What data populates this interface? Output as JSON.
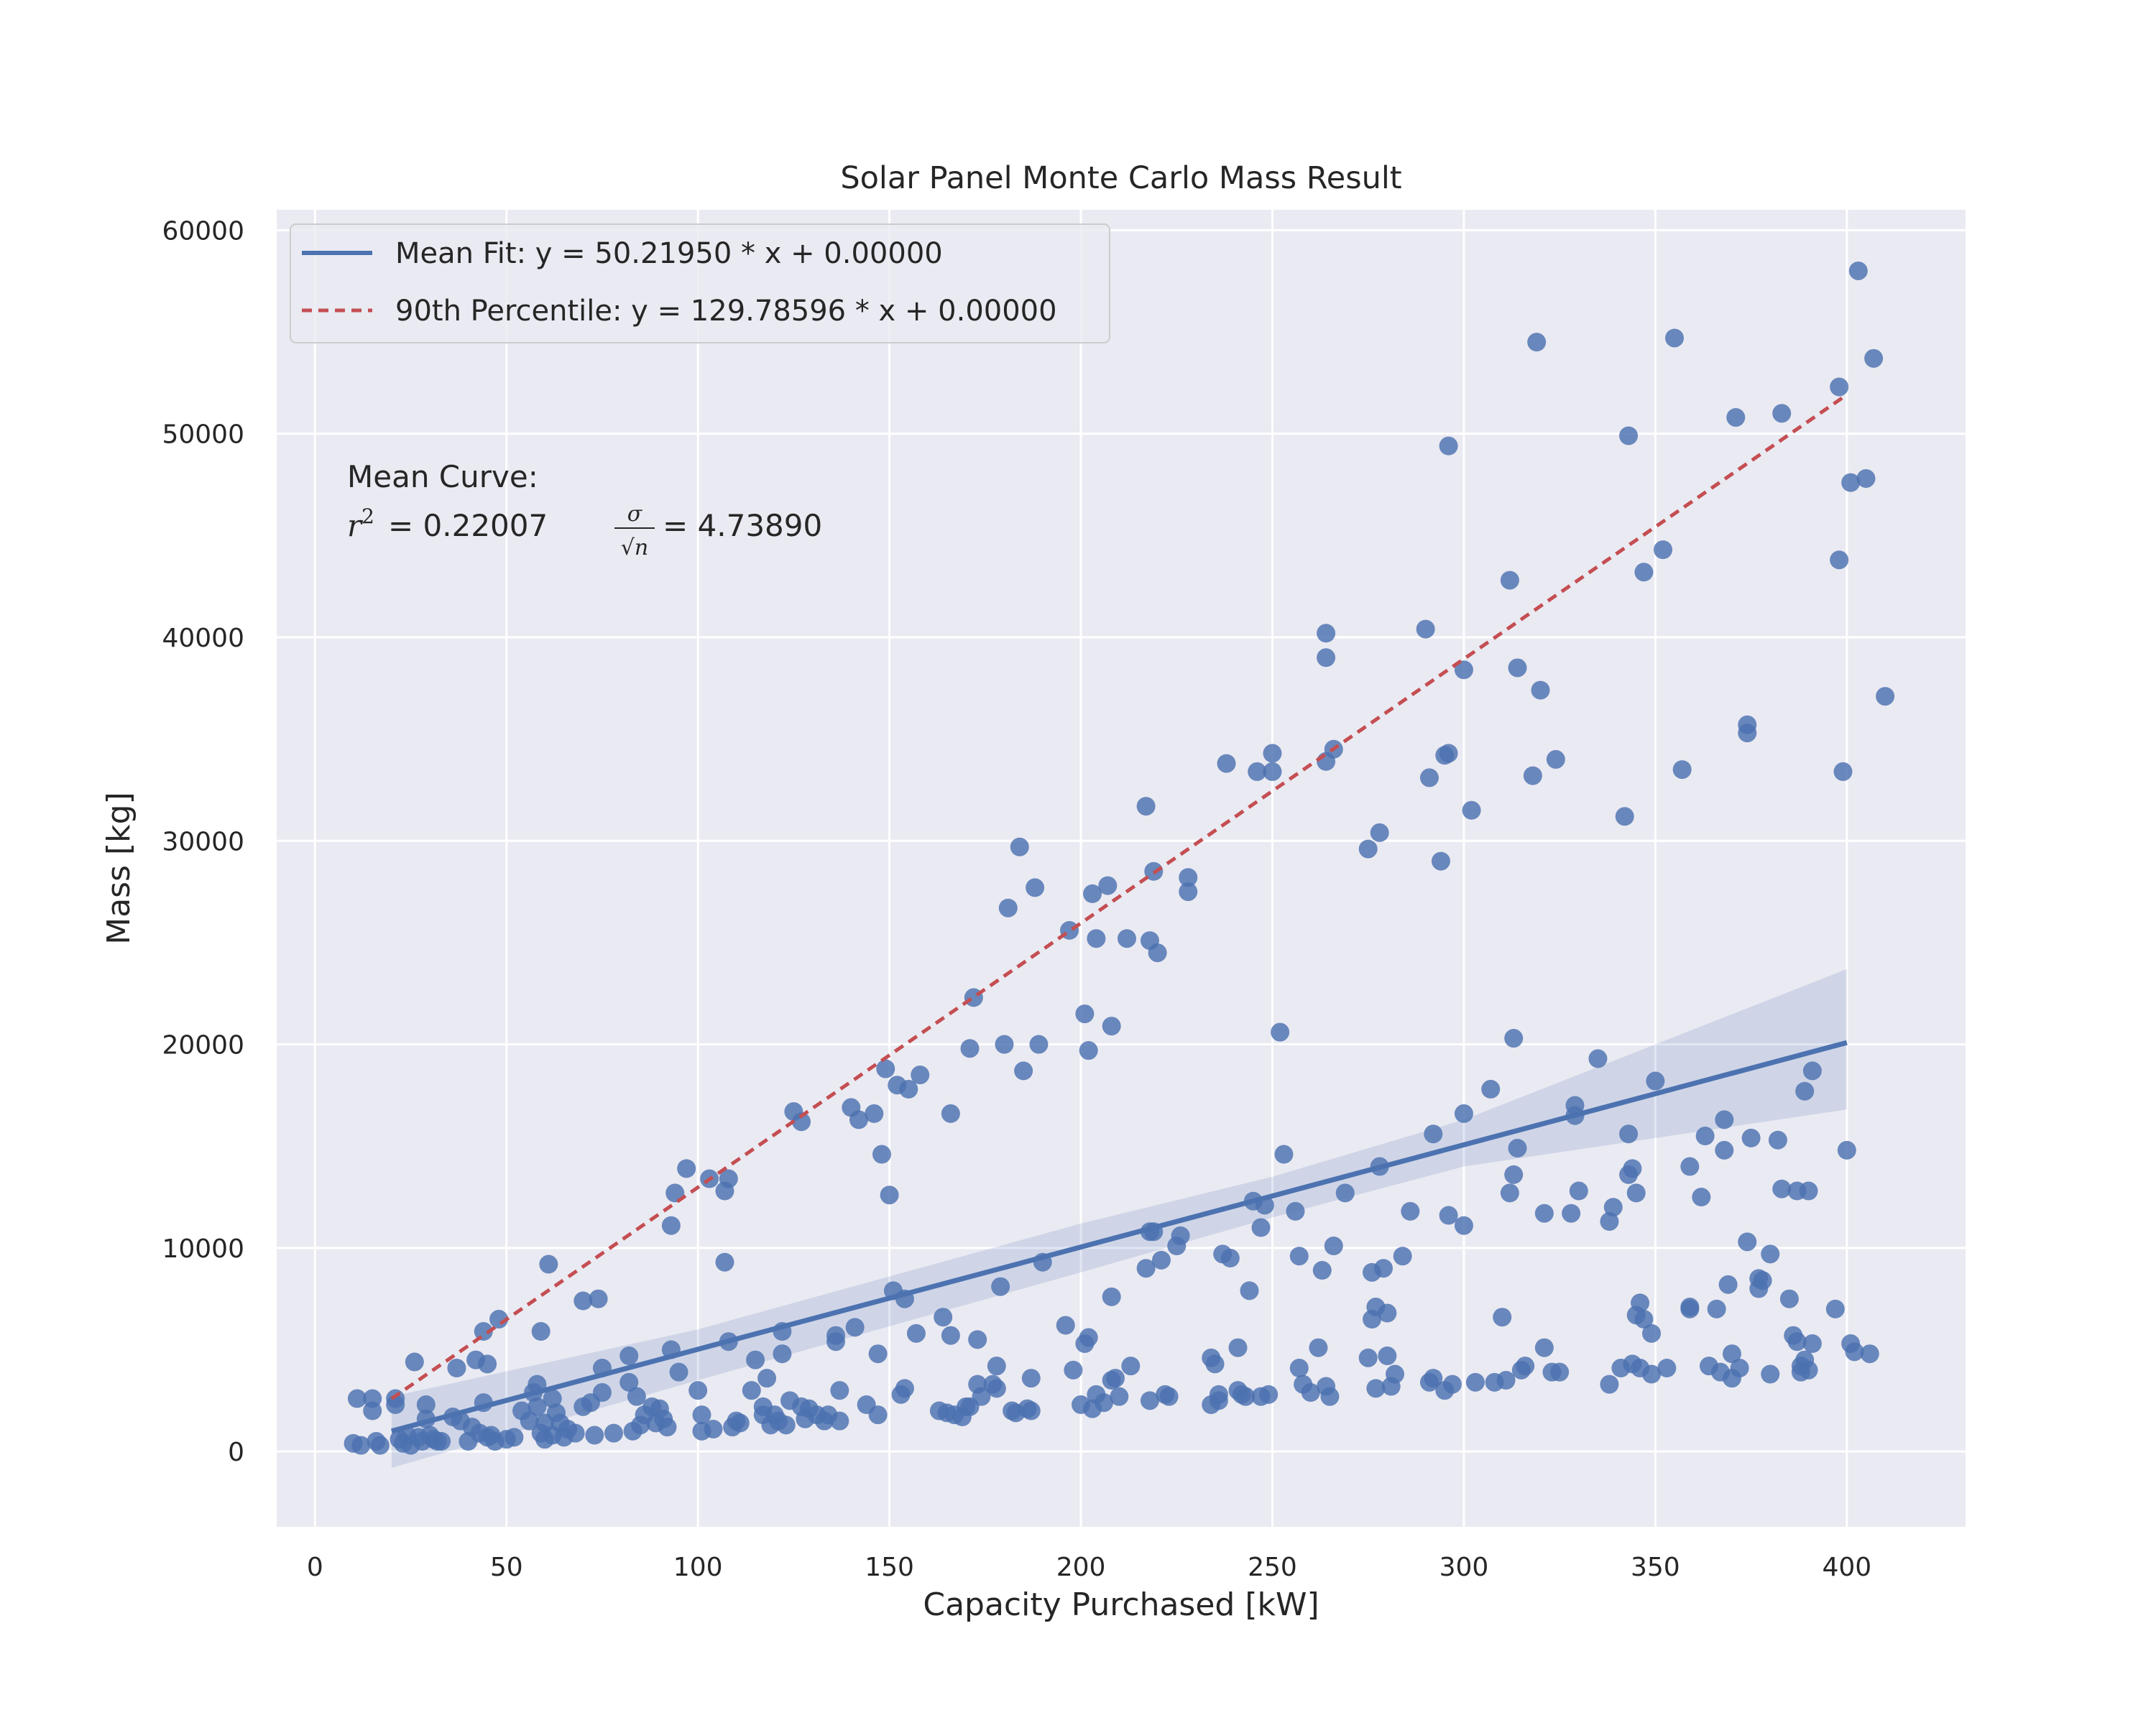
{
  "chart_data": {
    "type": "scatter",
    "title": "Solar Panel Monte Carlo Mass Result",
    "xlabel": "Capacity Purchased [kW]",
    "ylabel": "Mass [kg]",
    "xlim": [
      -10,
      431
    ],
    "ylim": [
      -3700,
      61000
    ],
    "xticks": [
      0,
      50,
      100,
      150,
      200,
      250,
      300,
      350,
      400
    ],
    "yticks": [
      0,
      10000,
      20000,
      30000,
      40000,
      50000,
      60000
    ],
    "grid": true,
    "legend_location": "upper left",
    "colors": {
      "background": "#eaeaf2",
      "grid": "#ffffff",
      "points": "#4c72b0",
      "mean_fit": "#4c72b0",
      "percentile": "#c44e52",
      "band": "#4c72b0"
    },
    "legend": [
      {
        "label": "Mean Fit: y = 50.21950 * x + 0.00000",
        "style": "solid"
      },
      {
        "label": "90th Percentile: y = 129.78596 * x + 0.00000",
        "style": "dashed"
      }
    ],
    "annotation": {
      "line1": "Mean Curve:",
      "r2_value": "= 0.22007",
      "sigma_value": "= 4.73890"
    },
    "lines": [
      {
        "name": "Mean Fit",
        "slope": 50.2195,
        "intercept": 0,
        "x": [
          20,
          400
        ]
      },
      {
        "name": "90th Percentile",
        "slope": 129.78596,
        "intercept": 0,
        "x": [
          20,
          400
        ]
      }
    ],
    "confidence_band": {
      "x": [
        20,
        100,
        200,
        250,
        300,
        400
      ],
      "lower": [
        -800,
        3500,
        8800,
        11500,
        14000,
        16800
      ],
      "upper": [
        2700,
        6000,
        11200,
        13500,
        16300,
        23700
      ]
    },
    "points": [
      [
        10,
        400
      ],
      [
        11,
        2600
      ],
      [
        12,
        300
      ],
      [
        15,
        2600
      ],
      [
        15,
        2000
      ],
      [
        16,
        500
      ],
      [
        17,
        300
      ],
      [
        21,
        2600
      ],
      [
        21,
        2300
      ],
      [
        22,
        600
      ],
      [
        23,
        400
      ],
      [
        24,
        800
      ],
      [
        25,
        300
      ],
      [
        26,
        4400
      ],
      [
        27,
        700
      ],
      [
        28,
        500
      ],
      [
        29,
        2300
      ],
      [
        29,
        1600
      ],
      [
        30,
        800
      ],
      [
        31,
        600
      ],
      [
        32,
        500
      ],
      [
        33,
        500
      ],
      [
        36,
        1700
      ],
      [
        37,
        4100
      ],
      [
        38,
        1500
      ],
      [
        40,
        500
      ],
      [
        41,
        1200
      ],
      [
        42,
        4500
      ],
      [
        43,
        900
      ],
      [
        44,
        2400
      ],
      [
        44,
        5900
      ],
      [
        45,
        4300
      ],
      [
        45,
        700
      ],
      [
        46,
        800
      ],
      [
        47,
        500
      ],
      [
        48,
        6500
      ],
      [
        50,
        600
      ],
      [
        52,
        700
      ],
      [
        54,
        2000
      ],
      [
        56,
        1500
      ],
      [
        57,
        2900
      ],
      [
        58,
        3300
      ],
      [
        58,
        2200
      ],
      [
        59,
        900
      ],
      [
        59,
        5900
      ],
      [
        60,
        600
      ],
      [
        60,
        1400
      ],
      [
        61,
        9200
      ],
      [
        62,
        800
      ],
      [
        62,
        2600
      ],
      [
        63,
        1900
      ],
      [
        64,
        1400
      ],
      [
        65,
        700
      ],
      [
        66,
        1100
      ],
      [
        68,
        900
      ],
      [
        70,
        2200
      ],
      [
        70,
        7400
      ],
      [
        72,
        2400
      ],
      [
        73,
        800
      ],
      [
        74,
        7500
      ],
      [
        75,
        4100
      ],
      [
        75,
        2900
      ],
      [
        78,
        900
      ],
      [
        82,
        4700
      ],
      [
        82,
        3400
      ],
      [
        83,
        1000
      ],
      [
        84,
        2700
      ],
      [
        85,
        1300
      ],
      [
        86,
        1800
      ],
      [
        88,
        2200
      ],
      [
        89,
        1400
      ],
      [
        90,
        2100
      ],
      [
        91,
        1600
      ],
      [
        92,
        1200
      ],
      [
        93,
        11100
      ],
      [
        93,
        5000
      ],
      [
        94,
        12700
      ],
      [
        95,
        3900
      ],
      [
        97,
        13900
      ],
      [
        100,
        3000
      ],
      [
        101,
        1000
      ],
      [
        101,
        1800
      ],
      [
        103,
        13400
      ],
      [
        104,
        1100
      ],
      [
        107,
        9300
      ],
      [
        107,
        12800
      ],
      [
        108,
        13400
      ],
      [
        108,
        5400
      ],
      [
        109,
        1200
      ],
      [
        110,
        1500
      ],
      [
        111,
        1400
      ],
      [
        114,
        3000
      ],
      [
        115,
        4500
      ],
      [
        117,
        2200
      ],
      [
        117,
        1800
      ],
      [
        118,
        3600
      ],
      [
        119,
        1300
      ],
      [
        120,
        1800
      ],
      [
        121,
        1500
      ],
      [
        122,
        4800
      ],
      [
        122,
        5900
      ],
      [
        123,
        1300
      ],
      [
        124,
        2500
      ],
      [
        125,
        16700
      ],
      [
        127,
        2200
      ],
      [
        127,
        16200
      ],
      [
        128,
        1600
      ],
      [
        129,
        2100
      ],
      [
        131,
        1800
      ],
      [
        133,
        1500
      ],
      [
        134,
        1800
      ],
      [
        136,
        5700
      ],
      [
        136,
        5400
      ],
      [
        137,
        3000
      ],
      [
        137,
        1500
      ],
      [
        140,
        16900
      ],
      [
        141,
        6100
      ],
      [
        142,
        16300
      ],
      [
        144,
        2300
      ],
      [
        146,
        16600
      ],
      [
        147,
        4800
      ],
      [
        147,
        1800
      ],
      [
        148,
        14600
      ],
      [
        149,
        18800
      ],
      [
        150,
        12600
      ],
      [
        151,
        7900
      ],
      [
        152,
        18000
      ],
      [
        153,
        2800
      ],
      [
        154,
        7500
      ],
      [
        154,
        3100
      ],
      [
        155,
        17800
      ],
      [
        157,
        5800
      ],
      [
        158,
        18500
      ],
      [
        163,
        2000
      ],
      [
        164,
        6600
      ],
      [
        165,
        1900
      ],
      [
        166,
        16600
      ],
      [
        166,
        5700
      ],
      [
        167,
        1800
      ],
      [
        169,
        1700
      ],
      [
        170,
        2200
      ],
      [
        171,
        2200
      ],
      [
        171,
        19800
      ],
      [
        172,
        22300
      ],
      [
        173,
        3300
      ],
      [
        173,
        5500
      ],
      [
        174,
        2700
      ],
      [
        177,
        3300
      ],
      [
        178,
        4200
      ],
      [
        178,
        3100
      ],
      [
        179,
        8100
      ],
      [
        180,
        20000
      ],
      [
        181,
        26700
      ],
      [
        182,
        2000
      ],
      [
        183,
        1900
      ],
      [
        184,
        29700
      ],
      [
        185,
        18700
      ],
      [
        186,
        2100
      ],
      [
        187,
        3600
      ],
      [
        187,
        2000
      ],
      [
        188,
        27700
      ],
      [
        189,
        20000
      ],
      [
        190,
        9300
      ],
      [
        196,
        6200
      ],
      [
        197,
        25600
      ],
      [
        198,
        4000
      ],
      [
        200,
        2300
      ],
      [
        201,
        5300
      ],
      [
        201,
        21500
      ],
      [
        202,
        5600
      ],
      [
        202,
        19700
      ],
      [
        203,
        27400
      ],
      [
        203,
        2100
      ],
      [
        204,
        25200
      ],
      [
        204,
        2800
      ],
      [
        206,
        2400
      ],
      [
        207,
        27800
      ],
      [
        208,
        3500
      ],
      [
        208,
        7600
      ],
      [
        208,
        20900
      ],
      [
        209,
        3600
      ],
      [
        210,
        2700
      ],
      [
        212,
        25200
      ],
      [
        213,
        4200
      ],
      [
        217,
        9000
      ],
      [
        217,
        31700
      ],
      [
        218,
        2500
      ],
      [
        218,
        10800
      ],
      [
        218,
        25100
      ],
      [
        219,
        28500
      ],
      [
        219,
        10800
      ],
      [
        220,
        24500
      ],
      [
        221,
        9400
      ],
      [
        222,
        2800
      ],
      [
        223,
        2700
      ],
      [
        225,
        10100
      ],
      [
        226,
        10600
      ],
      [
        228,
        28200
      ],
      [
        228,
        27500
      ],
      [
        234,
        2300
      ],
      [
        234,
        4600
      ],
      [
        235,
        4300
      ],
      [
        236,
        2500
      ],
      [
        236,
        2800
      ],
      [
        237,
        9700
      ],
      [
        238,
        33800
      ],
      [
        239,
        9500
      ],
      [
        241,
        5100
      ],
      [
        241,
        3000
      ],
      [
        242,
        2800
      ],
      [
        243,
        2700
      ],
      [
        244,
        7900
      ],
      [
        245,
        12300
      ],
      [
        246,
        33400
      ],
      [
        247,
        2700
      ],
      [
        247,
        11000
      ],
      [
        248,
        12100
      ],
      [
        249,
        2800
      ],
      [
        250,
        33400
      ],
      [
        250,
        34300
      ],
      [
        252,
        20600
      ],
      [
        253,
        14600
      ],
      [
        256,
        11800
      ],
      [
        257,
        4100
      ],
      [
        257,
        9600
      ],
      [
        258,
        3300
      ],
      [
        260,
        2900
      ],
      [
        262,
        5100
      ],
      [
        263,
        8900
      ],
      [
        264,
        3200
      ],
      [
        264,
        39000
      ],
      [
        264,
        40200
      ],
      [
        264,
        33900
      ],
      [
        265,
        2700
      ],
      [
        266,
        34500
      ],
      [
        266,
        10100
      ],
      [
        269,
        12700
      ],
      [
        275,
        29600
      ],
      [
        275,
        4600
      ],
      [
        276,
        8800
      ],
      [
        276,
        6500
      ],
      [
        277,
        3100
      ],
      [
        277,
        7100
      ],
      [
        278,
        30400
      ],
      [
        278,
        14000
      ],
      [
        279,
        9000
      ],
      [
        280,
        4700
      ],
      [
        280,
        6800
      ],
      [
        281,
        3200
      ],
      [
        282,
        3800
      ],
      [
        284,
        9600
      ],
      [
        286,
        11800
      ],
      [
        290,
        40400
      ],
      [
        291,
        33100
      ],
      [
        291,
        3400
      ],
      [
        292,
        15600
      ],
      [
        292,
        3600
      ],
      [
        294,
        29000
      ],
      [
        295,
        34200
      ],
      [
        295,
        3000
      ],
      [
        296,
        34300
      ],
      [
        296,
        49400
      ],
      [
        296,
        11600
      ],
      [
        297,
        3300
      ],
      [
        300,
        38400
      ],
      [
        300,
        16600
      ],
      [
        300,
        11100
      ],
      [
        302,
        31500
      ],
      [
        303,
        3400
      ],
      [
        307,
        17800
      ],
      [
        308,
        3400
      ],
      [
        310,
        6600
      ],
      [
        311,
        3500
      ],
      [
        312,
        42800
      ],
      [
        312,
        12700
      ],
      [
        313,
        20300
      ],
      [
        313,
        13600
      ],
      [
        314,
        38500
      ],
      [
        314,
        14900
      ],
      [
        315,
        4000
      ],
      [
        316,
        4200
      ],
      [
        318,
        33200
      ],
      [
        319,
        54500
      ],
      [
        320,
        37400
      ],
      [
        321,
        11700
      ],
      [
        321,
        5100
      ],
      [
        323,
        3900
      ],
      [
        324,
        34000
      ],
      [
        325,
        3900
      ],
      [
        328,
        11700
      ],
      [
        329,
        16500
      ],
      [
        329,
        17000
      ],
      [
        330,
        12800
      ],
      [
        335,
        19300
      ],
      [
        338,
        3300
      ],
      [
        338,
        11300
      ],
      [
        339,
        12000
      ],
      [
        341,
        4100
      ],
      [
        342,
        31200
      ],
      [
        343,
        49900
      ],
      [
        343,
        15600
      ],
      [
        343,
        13600
      ],
      [
        344,
        4300
      ],
      [
        344,
        13900
      ],
      [
        345,
        12700
      ],
      [
        345,
        6700
      ],
      [
        346,
        7300
      ],
      [
        346,
        4100
      ],
      [
        347,
        6500
      ],
      [
        347,
        43200
      ],
      [
        349,
        3800
      ],
      [
        349,
        5800
      ],
      [
        350,
        18200
      ],
      [
        352,
        44300
      ],
      [
        353,
        4100
      ],
      [
        355,
        54700
      ],
      [
        357,
        33500
      ],
      [
        359,
        14000
      ],
      [
        359,
        7000
      ],
      [
        359,
        7100
      ],
      [
        362,
        12500
      ],
      [
        363,
        15500
      ],
      [
        364,
        4200
      ],
      [
        366,
        7000
      ],
      [
        367,
        3900
      ],
      [
        368,
        14800
      ],
      [
        368,
        16300
      ],
      [
        369,
        8200
      ],
      [
        370,
        3600
      ],
      [
        370,
        4800
      ],
      [
        371,
        50800
      ],
      [
        372,
        4100
      ],
      [
        374,
        10300
      ],
      [
        374,
        35700
      ],
      [
        374,
        35300
      ],
      [
        375,
        15400
      ],
      [
        377,
        8500
      ],
      [
        377,
        8000
      ],
      [
        378,
        8400
      ],
      [
        380,
        3800
      ],
      [
        380,
        9700
      ],
      [
        382,
        15300
      ],
      [
        383,
        12900
      ],
      [
        383,
        51000
      ],
      [
        385,
        7500
      ],
      [
        386,
        5700
      ],
      [
        387,
        12800
      ],
      [
        387,
        5400
      ],
      [
        388,
        4200
      ],
      [
        388,
        3900
      ],
      [
        389,
        4500
      ],
      [
        389,
        17700
      ],
      [
        390,
        12800
      ],
      [
        390,
        4000
      ],
      [
        391,
        5300
      ],
      [
        391,
        18700
      ],
      [
        397,
        7000
      ],
      [
        398,
        52300
      ],
      [
        398,
        43800
      ],
      [
        399,
        33400
      ],
      [
        400,
        14800
      ],
      [
        401,
        47600
      ],
      [
        401,
        5300
      ],
      [
        402,
        4900
      ],
      [
        403,
        58000
      ],
      [
        405,
        47800
      ],
      [
        406,
        4800
      ],
      [
        407,
        53700
      ],
      [
        410,
        37100
      ]
    ]
  }
}
